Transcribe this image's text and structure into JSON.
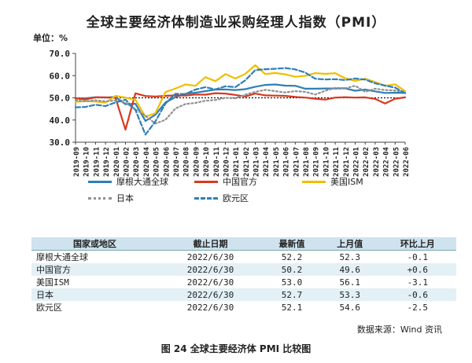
{
  "title": "全球主要经济体制造业采购经理人指数（PMI）",
  "unit_label": "单位：%",
  "chart_data": {
    "type": "line",
    "ylim": [
      30,
      70
    ],
    "yticks": [
      "30.0",
      "40.0",
      "50.0",
      "60.0",
      "70.0"
    ],
    "x_labels": [
      "2019-09",
      "2019-10",
      "2019-11",
      "2019-12",
      "2020-01",
      "2020-02",
      "2020-03",
      "2020-04",
      "2020-05",
      "2020-06",
      "2020-07",
      "2020-08",
      "2020-09",
      "2020-10",
      "2020-11",
      "2020-12",
      "2021-01",
      "2021-02",
      "2021-03",
      "2021-04",
      "2021-05",
      "2021-06",
      "2021-07",
      "2021-08",
      "2021-09",
      "2021-10",
      "2021-11",
      "2021-12",
      "2022-01",
      "2022-02",
      "2022-03",
      "2022-04",
      "2022-05",
      "2022-06"
    ],
    "x_tick_labels": [
      "2019-09",
      "2019-10",
      "2019-11",
      "2019-12",
      "2020-01",
      "2020-02",
      "2020-03",
      "2020-04",
      "2020-05",
      "2020-06",
      "2020-07",
      "2020-08",
      "2020-09",
      "2020-10",
      "2020-11",
      "2020-12",
      "2021-01",
      "2021-02",
      "2021-03",
      "2021-04",
      "2021-05",
      "2021-06",
      "2021-07",
      "2021-08",
      "2021-09",
      "2021-10",
      "2021-11",
      "2021-12",
      "2022-01",
      "2022-02",
      "2022-03",
      "2022-04",
      "2022-05",
      "2022-06"
    ],
    "reference_line": 50,
    "series": [
      {
        "name": "摩根大通全球",
        "color": "#2f7fb5",
        "style": "solid",
        "values": [
          49.7,
          49.8,
          50.3,
          50.1,
          50.4,
          47.1,
          47.3,
          39.6,
          42.4,
          47.9,
          50.3,
          51.8,
          52.3,
          53.0,
          53.7,
          53.8,
          53.5,
          53.9,
          55.0,
          55.8,
          56.0,
          55.5,
          55.4,
          54.1,
          54.1,
          54.2,
          54.2,
          54.3,
          53.2,
          53.7,
          52.9,
          52.2,
          52.3,
          52.2
        ]
      },
      {
        "name": "中国官方",
        "color": "#d9381e",
        "style": "solid",
        "values": [
          49.8,
          49.3,
          50.2,
          50.2,
          50.0,
          35.7,
          52.0,
          50.8,
          50.6,
          50.9,
          51.1,
          51.0,
          51.5,
          51.4,
          52.1,
          51.9,
          51.3,
          50.6,
          51.9,
          51.1,
          51.0,
          50.9,
          50.4,
          50.1,
          49.6,
          49.2,
          50.1,
          50.3,
          50.1,
          50.2,
          49.5,
          47.4,
          49.6,
          50.2
        ]
      },
      {
        "name": "美国ISM",
        "color": "#f0be00",
        "style": "solid",
        "values": [
          48.2,
          48.5,
          48.3,
          47.8,
          50.9,
          50.1,
          49.1,
          41.5,
          43.1,
          52.6,
          54.2,
          56.0,
          55.4,
          59.3,
          57.5,
          60.7,
          58.7,
          60.8,
          64.7,
          60.7,
          61.2,
          60.6,
          59.5,
          59.9,
          61.1,
          60.8,
          61.1,
          58.8,
          57.6,
          58.6,
          57.1,
          55.4,
          56.1,
          53.0
        ]
      },
      {
        "name": "日本",
        "color": "#909090",
        "style": "dotted",
        "values": [
          48.9,
          48.4,
          48.9,
          48.4,
          48.8,
          47.8,
          44.8,
          41.9,
          38.4,
          40.1,
          45.2,
          47.2,
          47.7,
          48.7,
          49.0,
          50.0,
          49.8,
          51.4,
          52.7,
          53.6,
          53.0,
          52.4,
          53.0,
          52.7,
          51.5,
          53.2,
          54.5,
          54.3,
          55.4,
          52.7,
          54.1,
          53.5,
          53.3,
          52.7
        ]
      },
      {
        "name": "欧元区",
        "color": "#2f7fb5",
        "style": "dashed",
        "values": [
          45.7,
          45.9,
          46.9,
          46.3,
          47.9,
          49.2,
          44.5,
          33.4,
          39.4,
          47.4,
          51.8,
          51.7,
          53.7,
          54.8,
          53.8,
          55.2,
          54.8,
          57.9,
          62.5,
          62.9,
          63.1,
          63.4,
          62.8,
          61.4,
          58.6,
          58.3,
          58.4,
          58.0,
          58.7,
          58.2,
          56.5,
          55.5,
          54.6,
          52.1
        ]
      }
    ]
  },
  "table": {
    "headers": [
      "国家或地区",
      "截止日期",
      "最新值",
      "上月值",
      "环比上月"
    ],
    "rows": [
      [
        "摩根大通全球",
        "2022/6/30",
        "52.2",
        "52.3",
        "-0.1"
      ],
      [
        "中国官方",
        "2022/6/30",
        "50.2",
        "49.6",
        "+0.6"
      ],
      [
        "美国ISM",
        "2022/6/30",
        "53.0",
        "56.1",
        "-3.1"
      ],
      [
        "日本",
        "2022/6/30",
        "52.7",
        "53.3",
        "-0.6"
      ],
      [
        "欧元区",
        "2022/6/30",
        "52.1",
        "54.6",
        "-2.5"
      ]
    ]
  },
  "source": "数据来源：Wind 资讯",
  "caption": "图 24  全球主要经济体 PMI 比较图"
}
